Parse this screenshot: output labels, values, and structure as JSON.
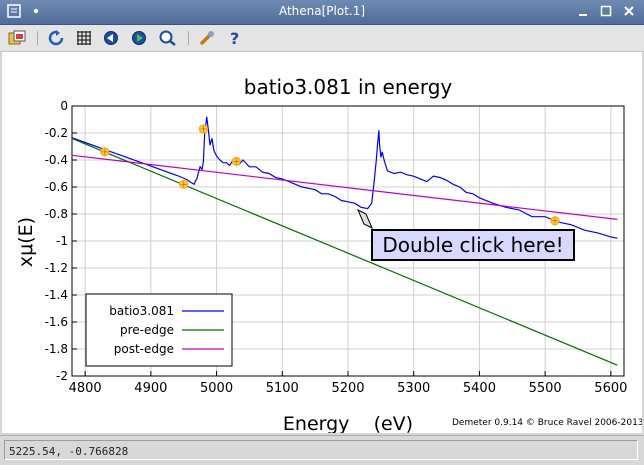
{
  "window": {
    "title": "Athena[Plot.1]",
    "menu_icon": "window-menu-icon",
    "controls": [
      "minimize-icon",
      "maximize-icon",
      "close-icon"
    ]
  },
  "toolbar": {
    "items": [
      "save-image-icon",
      "refresh-icon",
      "grid-icon",
      "zoom-out-icon",
      "zoom-in-icon",
      "zoom-reset-icon",
      "settings-wrench-icon",
      "help-icon"
    ]
  },
  "plot": {
    "title": "batio3.081 in energy",
    "callout": "Double click here!",
    "credit": "Demeter 0.9.14 © Bruce Ravel 2006-2013"
  },
  "chart_data": {
    "type": "line",
    "title": "batio3.081 in energy",
    "xlabel": "Energy    (eV)",
    "ylabel": "xμ(E)",
    "xlim": [
      4780,
      5620
    ],
    "ylim": [
      -2,
      0
    ],
    "xticks": [
      4800,
      4900,
      5000,
      5100,
      5200,
      5300,
      5400,
      5500,
      5600
    ],
    "yticks": [
      0,
      -0.2,
      -0.4,
      -0.6,
      -0.8,
      -1,
      -1.2,
      -1.4,
      -1.6,
      -1.8,
      -2
    ],
    "grid": true,
    "legend_position": "bottom-left",
    "series": [
      {
        "name": "batio3.081",
        "color": "#0000ff",
        "x": [
          4780,
          4800,
          4820,
          4840,
          4860,
          4880,
          4900,
          4920,
          4940,
          4955,
          4962,
          4966,
          4968,
          4970,
          4972,
          4975,
          4978,
          4980,
          4982,
          4984,
          4985,
          4986,
          4988,
          4990,
          4993,
          4996,
          5000,
          5005,
          5010,
          5015,
          5020,
          5025,
          5030,
          5035,
          5040,
          5050,
          5060,
          5070,
          5080,
          5090,
          5100,
          5110,
          5120,
          5130,
          5140,
          5150,
          5160,
          5170,
          5180,
          5190,
          5200,
          5210,
          5220,
          5230,
          5236,
          5240,
          5243,
          5245,
          5247,
          5248,
          5250,
          5252,
          5255,
          5260,
          5270,
          5280,
          5290,
          5300,
          5310,
          5320,
          5330,
          5340,
          5350,
          5360,
          5370,
          5380,
          5390,
          5400,
          5420,
          5440,
          5460,
          5480,
          5500,
          5520,
          5540,
          5560,
          5580,
          5600,
          5610
        ],
        "y": [
          -0.235,
          -0.27,
          -0.305,
          -0.34,
          -0.375,
          -0.41,
          -0.445,
          -0.48,
          -0.515,
          -0.545,
          -0.57,
          -0.58,
          -0.555,
          -0.54,
          -0.5,
          -0.45,
          -0.47,
          -0.41,
          -0.2,
          -0.12,
          -0.08,
          -0.12,
          -0.2,
          -0.29,
          -0.24,
          -0.33,
          -0.37,
          -0.4,
          -0.42,
          -0.42,
          -0.44,
          -0.4,
          -0.41,
          -0.43,
          -0.4,
          -0.45,
          -0.45,
          -0.49,
          -0.5,
          -0.53,
          -0.54,
          -0.56,
          -0.58,
          -0.6,
          -0.61,
          -0.62,
          -0.65,
          -0.65,
          -0.67,
          -0.7,
          -0.71,
          -0.72,
          -0.75,
          -0.76,
          -0.72,
          -0.55,
          -0.4,
          -0.28,
          -0.18,
          -0.28,
          -0.38,
          -0.34,
          -0.4,
          -0.48,
          -0.5,
          -0.49,
          -0.51,
          -0.52,
          -0.54,
          -0.56,
          -0.52,
          -0.53,
          -0.55,
          -0.58,
          -0.6,
          -0.64,
          -0.65,
          -0.68,
          -0.72,
          -0.75,
          -0.77,
          -0.82,
          -0.82,
          -0.86,
          -0.88,
          -0.92,
          -0.94,
          -0.97,
          -0.98
        ]
      },
      {
        "name": "pre-edge",
        "color": "#007000",
        "x": [
          4780,
          5610
        ],
        "y": [
          -0.24,
          -1.92
        ]
      },
      {
        "name": "post-edge",
        "color": "#c000c0",
        "x": [
          4780,
          5610
        ],
        "y": [
          -0.365,
          -0.84
        ]
      }
    ],
    "markers": {
      "color": "#ffa500",
      "points": [
        [
          4830,
          -0.34
        ],
        [
          4950,
          -0.58
        ],
        [
          4980,
          -0.17
        ],
        [
          5030,
          -0.41
        ],
        [
          5515,
          -0.85
        ]
      ]
    }
  },
  "status": {
    "text": "5225.54, -0.766828"
  }
}
